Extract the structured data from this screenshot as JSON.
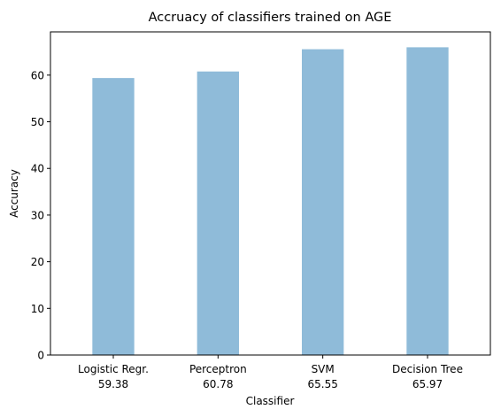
{
  "chart_data": {
    "type": "bar",
    "title": "Accruacy of classifiers trained on AGE",
    "xlabel": "Classifier",
    "ylabel": "Accuracy",
    "categories": [
      "Logistic Regr.",
      "Perceptron",
      "SVM",
      "Decision Tree"
    ],
    "value_labels": [
      "59.38",
      "60.78",
      "65.55",
      "65.97"
    ],
    "values": [
      59.38,
      60.78,
      65.55,
      65.97
    ],
    "ylim": [
      0,
      69.27
    ],
    "yticks": [
      0,
      10,
      20,
      30,
      40,
      50,
      60
    ],
    "grid": false,
    "bar_color": "#8fbbd9"
  }
}
